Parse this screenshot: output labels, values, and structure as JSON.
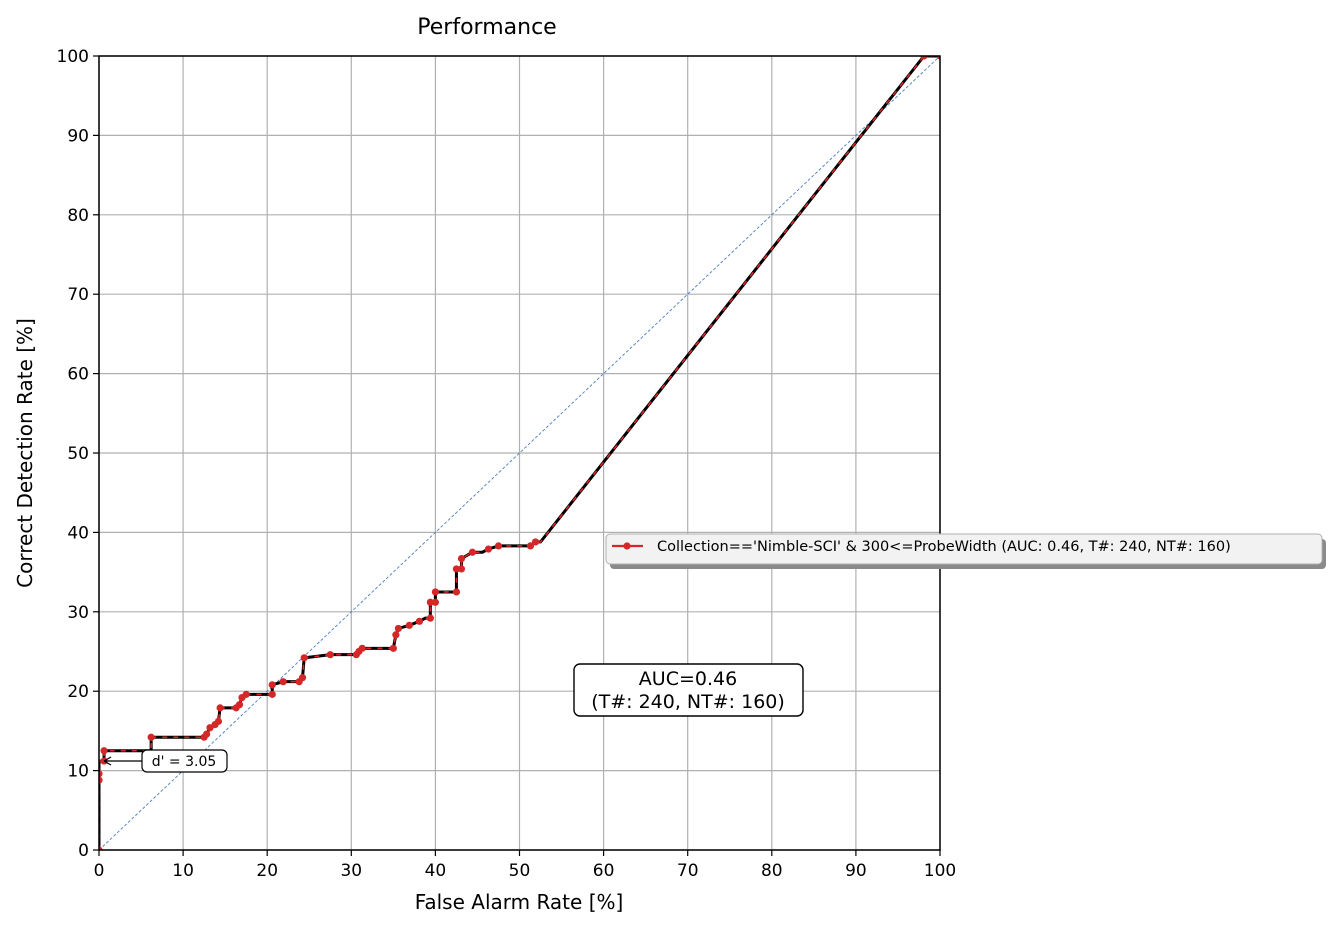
{
  "chart_data": {
    "type": "line",
    "title": "Performance",
    "xlabel": "False Alarm Rate [%]",
    "ylabel": "Correct Detection Rate [%]",
    "xlim": [
      0,
      100
    ],
    "ylim": [
      0,
      100
    ],
    "xticks": [
      0,
      10,
      20,
      30,
      40,
      50,
      60,
      70,
      80,
      90,
      100
    ],
    "yticks": [
      0,
      10,
      20,
      30,
      40,
      50,
      60,
      70,
      80,
      90,
      100
    ],
    "grid": true,
    "legend_position": "right",
    "series": [
      {
        "name": "Collection=='Nimble-SCI' & 300<=ProbeWidth (AUC: 0.46, T#: 240, NT#: 160)",
        "color": "#d62728",
        "line_color": "#000000",
        "points": [
          [
            0,
            0
          ],
          [
            0,
            8.8
          ],
          [
            0,
            9.6
          ],
          [
            0,
            11.2
          ],
          [
            0.6,
            11.2
          ],
          [
            0.6,
            12.5
          ],
          [
            6.2,
            12.5
          ],
          [
            6.2,
            14.2
          ],
          [
            12.5,
            14.2
          ],
          [
            12.8,
            14.6
          ],
          [
            13.2,
            15.4
          ],
          [
            13.8,
            15.8
          ],
          [
            14.2,
            16.2
          ],
          [
            14.4,
            17.9
          ],
          [
            16.3,
            17.9
          ],
          [
            16.7,
            18.3
          ],
          [
            17.0,
            19.2
          ],
          [
            17.5,
            19.6
          ],
          [
            20.6,
            19.6
          ],
          [
            20.6,
            20.8
          ],
          [
            21.9,
            21.2
          ],
          [
            23.8,
            21.2
          ],
          [
            24.2,
            21.7
          ],
          [
            24.4,
            24.2
          ],
          [
            27.5,
            24.6
          ],
          [
            30.6,
            24.6
          ],
          [
            30.9,
            25.0
          ],
          [
            31.3,
            25.4
          ],
          [
            35.0,
            25.4
          ],
          [
            35.3,
            27.1
          ],
          [
            35.6,
            27.9
          ],
          [
            36.9,
            28.3
          ],
          [
            38.1,
            28.8
          ],
          [
            38.8,
            29.2
          ],
          [
            39.4,
            29.2
          ],
          [
            39.4,
            31.2
          ],
          [
            40.0,
            31.2
          ],
          [
            40.0,
            32.5
          ],
          [
            42.5,
            32.5
          ],
          [
            42.5,
            35.4
          ],
          [
            43.1,
            35.4
          ],
          [
            43.1,
            36.7
          ],
          [
            44.4,
            37.5
          ],
          [
            45.6,
            37.5
          ],
          [
            46.3,
            37.9
          ],
          [
            47.5,
            38.3
          ],
          [
            51.3,
            38.3
          ],
          [
            51.9,
            38.8
          ],
          [
            52.5,
            38.8
          ],
          [
            98.1,
            100
          ],
          [
            100,
            100
          ]
        ],
        "markers": [
          [
            0,
            0
          ],
          [
            0,
            8.8
          ],
          [
            0,
            9.6
          ],
          [
            0.6,
            11.2
          ],
          [
            0.6,
            12.5
          ],
          [
            6.2,
            14.2
          ],
          [
            12.5,
            14.2
          ],
          [
            12.8,
            14.6
          ],
          [
            13.2,
            15.4
          ],
          [
            13.8,
            15.8
          ],
          [
            14.2,
            16.2
          ],
          [
            14.4,
            17.9
          ],
          [
            16.3,
            17.9
          ],
          [
            16.7,
            18.3
          ],
          [
            17.0,
            19.2
          ],
          [
            17.5,
            19.6
          ],
          [
            20.6,
            19.6
          ],
          [
            20.6,
            20.8
          ],
          [
            21.9,
            21.2
          ],
          [
            23.8,
            21.2
          ],
          [
            24.2,
            21.7
          ],
          [
            24.4,
            24.2
          ],
          [
            27.5,
            24.6
          ],
          [
            30.6,
            24.6
          ],
          [
            30.9,
            25.0
          ],
          [
            31.3,
            25.4
          ],
          [
            35.0,
            25.4
          ],
          [
            35.3,
            27.1
          ],
          [
            35.6,
            27.9
          ],
          [
            36.9,
            28.3
          ],
          [
            38.1,
            28.8
          ],
          [
            39.4,
            29.2
          ],
          [
            39.4,
            31.2
          ],
          [
            40.0,
            31.2
          ],
          [
            40.0,
            32.5
          ],
          [
            42.5,
            32.5
          ],
          [
            42.5,
            35.4
          ],
          [
            43.1,
            35.4
          ],
          [
            43.1,
            36.7
          ],
          [
            44.4,
            37.5
          ],
          [
            46.3,
            37.9
          ],
          [
            47.5,
            38.3
          ],
          [
            51.3,
            38.3
          ],
          [
            51.9,
            38.8
          ],
          [
            98.1,
            100
          ],
          [
            100,
            100
          ]
        ]
      }
    ],
    "chance_line": {
      "from": [
        0,
        0
      ],
      "to": [
        100,
        100
      ],
      "color": "#4c7ebf",
      "style": "dashed"
    },
    "annotations": [
      {
        "text": "AUC=0.46",
        "text2": "(T#: 240, NT#: 160)",
        "x": 61.9,
        "y": 20.3,
        "boxed": true
      },
      {
        "text": "d' = 3.05",
        "arrow_to": [
          0.3,
          11.2
        ],
        "x": 5.0,
        "y": 11.2,
        "boxed": true
      }
    ]
  }
}
